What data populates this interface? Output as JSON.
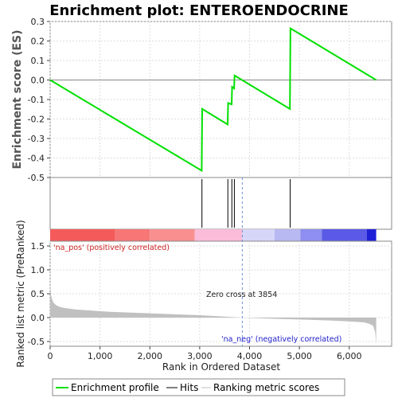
{
  "chart_data": {
    "type": "line",
    "title": "Enrichment plot: ENTEROENDOCRINE",
    "xlabel": "Rank in Ordered Dataset",
    "xlim": [
      0,
      6850
    ],
    "xticks": [
      0,
      1000,
      2000,
      3000,
      4000,
      5000,
      6000
    ],
    "xtick_labels": [
      "0",
      "1,000",
      "2,000",
      "3,000",
      "4,000",
      "5,000",
      "6,000"
    ],
    "es_panel": {
      "ylabel": "Enrichment score (ES)",
      "ylim": [
        -0.5,
        0.3
      ],
      "yticks": [
        -0.5,
        -0.4,
        -0.3,
        -0.2,
        -0.1,
        0.0,
        0.1,
        0.2,
        0.3
      ],
      "ytick_labels": [
        "-0.5",
        "-0.4",
        "-0.3",
        "-0.2",
        "-0.1",
        "0.0",
        "0.1",
        "0.2",
        "0.3"
      ],
      "series": [
        {
          "name": "Enrichment profile",
          "color": "#00e000",
          "x": [
            0,
            3040,
            3050,
            3560,
            3570,
            3640,
            3650,
            3690,
            3700,
            4810,
            4820,
            6540
          ],
          "y": [
            0.0,
            -0.465,
            -0.148,
            -0.228,
            -0.118,
            -0.125,
            -0.035,
            -0.043,
            0.023,
            -0.148,
            0.265,
            0.0
          ]
        }
      ],
      "grid": true
    },
    "hits_panel": {
      "name": "Hits",
      "positions": [
        3045,
        3565,
        3645,
        3695,
        4815
      ]
    },
    "heatmap_bar": {
      "segments": [
        {
          "from": 0,
          "to": 1300,
          "color": "#f45a5a"
        },
        {
          "from": 1300,
          "to": 2000,
          "color": "#f77676"
        },
        {
          "from": 2000,
          "to": 2900,
          "color": "#f89090"
        },
        {
          "from": 2900,
          "to": 3854,
          "color": "#fbbcd9"
        },
        {
          "from": 3854,
          "to": 4500,
          "color": "#d6d6f8"
        },
        {
          "from": 4500,
          "to": 5020,
          "color": "#b8b8f2"
        },
        {
          "from": 5020,
          "to": 5450,
          "color": "#8e8ef0"
        },
        {
          "from": 5450,
          "to": 6350,
          "color": "#5a5ae6"
        },
        {
          "from": 6350,
          "to": 6540,
          "color": "#1f1fd8"
        }
      ]
    },
    "metric_panel": {
      "name": "Ranking metric scores",
      "ylabel": "Ranked list metric (PreRanked)",
      "ylim": [
        -0.6,
        1.6
      ],
      "yticks": [
        -0.5,
        0.0,
        0.5,
        1.0,
        1.5
      ],
      "ytick_labels": [
        "-0.5",
        "0.0",
        "0.5",
        "1.0",
        "1.5"
      ],
      "fill_color": "#c0c0c0",
      "x": [
        0,
        20,
        60,
        120,
        200,
        300,
        500,
        800,
        1200,
        2000,
        3000,
        3854,
        4500,
        5000,
        5600,
        6000,
        6300,
        6400,
        6480,
        6520,
        6540
      ],
      "y": [
        0.72,
        0.45,
        0.32,
        0.26,
        0.22,
        0.2,
        0.17,
        0.15,
        0.12,
        0.09,
        0.05,
        0.0,
        -0.025,
        -0.04,
        -0.06,
        -0.08,
        -0.1,
        -0.13,
        -0.17,
        -0.3,
        -0.55
      ],
      "annotations": {
        "pos_label": "'na_pos' (positively correlated)",
        "neg_label": "'na_neg' (negatively correlated)",
        "zero_cross": "Zero cross at 3854",
        "zero_cross_x": 3854
      }
    },
    "legend": {
      "placement": "bottom",
      "entries": [
        "Enrichment profile",
        "Hits",
        "Ranking metric scores"
      ]
    }
  }
}
